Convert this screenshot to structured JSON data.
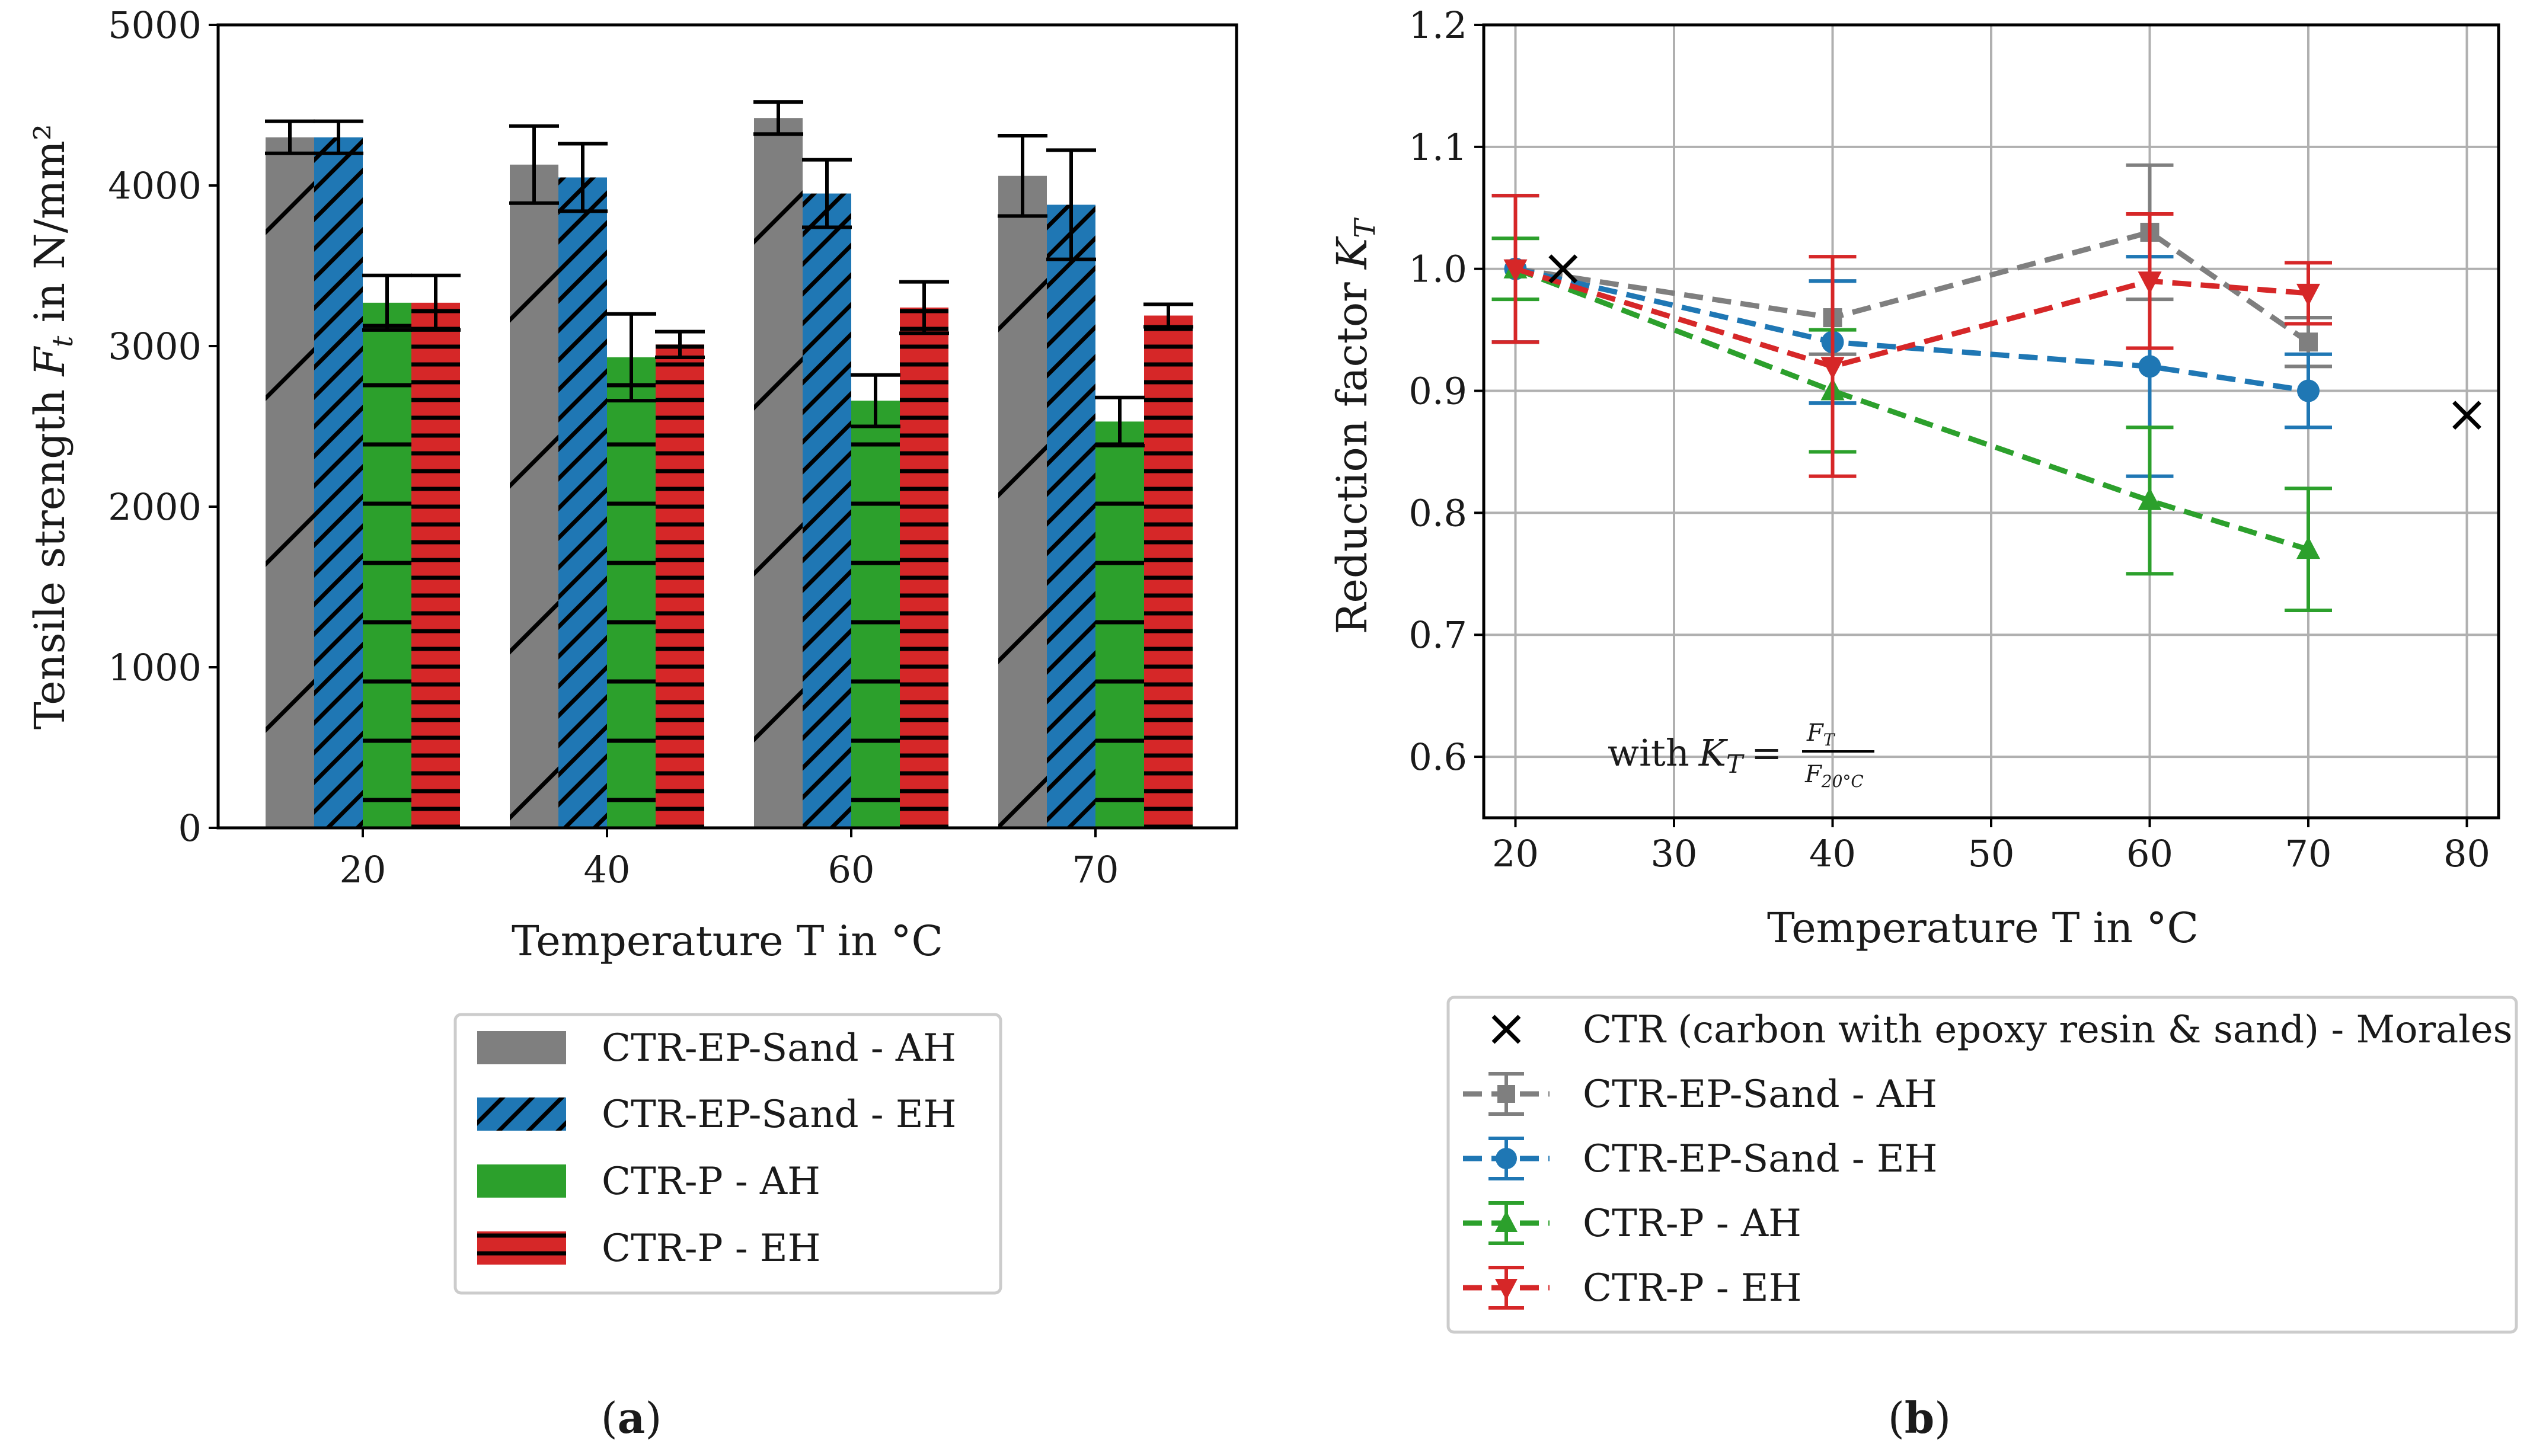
{
  "colors": {
    "gray": "#7f7f7f",
    "blue": "#1f77b4",
    "green": "#2ca02c",
    "red": "#d62728",
    "black": "#000000",
    "grid": "#b0b0b0"
  },
  "chart_data": [
    {
      "type": "bar",
      "panel_label": "(a)",
      "panel_letter": "a",
      "xlabel": "Temperature T in °C",
      "ylabel": "Tensile strength F_t in N/mm²",
      "ylabel_pre": "Tensile strength ",
      "ylabel_sym": "F",
      "ylabel_sub": "t",
      "ylabel_post": " in N/mm²",
      "ylim": [
        0,
        5000
      ],
      "yticks": [
        0,
        1000,
        2000,
        3000,
        4000,
        5000
      ],
      "categories": [
        "20",
        "40",
        "60",
        "70"
      ],
      "series": [
        {
          "name": "CTR-EP-Sand - AH",
          "color": "#7f7f7f",
          "hatch": "slash-sparse",
          "values": [
            4300,
            4130,
            4420,
            4060
          ],
          "err": [
            100,
            240,
            100,
            250
          ]
        },
        {
          "name": "CTR-EP-Sand - EH",
          "color": "#1f77b4",
          "hatch": "slash-dense",
          "values": [
            4300,
            4050,
            3950,
            3880
          ],
          "err": [
            100,
            210,
            210,
            340
          ]
        },
        {
          "name": "CTR-P - AH",
          "color": "#2ca02c",
          "hatch": "horizontal-sparse",
          "values": [
            3270,
            2930,
            2660,
            2530
          ],
          "err": [
            170,
            270,
            160,
            150
          ]
        },
        {
          "name": "CTR-P - EH",
          "color": "#d62728",
          "hatch": "horizontal-dense",
          "values": [
            3270,
            3010,
            3240,
            3190
          ],
          "err": [
            170,
            80,
            160,
            70
          ]
        }
      ],
      "legend": [
        "CTR-EP-Sand - AH",
        "CTR-EP-Sand - EH",
        "CTR-P - AH",
        "CTR-P - EH"
      ]
    },
    {
      "type": "line",
      "panel_label": "(b)",
      "panel_letter": "b",
      "xlabel": "Temperature T in °C",
      "ylabel": "Reduction factor K_T",
      "ylabel_pre": "Reduction factor ",
      "ylabel_sym": "K",
      "ylabel_sub": "T",
      "xlim": [
        18,
        82
      ],
      "ylim": [
        0.55,
        1.2
      ],
      "xticks": [
        20,
        30,
        40,
        50,
        60,
        70,
        80
      ],
      "yticks": [
        0.6,
        0.7,
        0.8,
        0.9,
        1.0,
        1.1,
        1.2
      ],
      "ytick_labels": [
        "0.6",
        "0.7",
        "0.8",
        "0.9",
        "1.0",
        "1.1",
        "1.2"
      ],
      "grid": true,
      "annotation": "with K_T = F_T / F_20°C",
      "annotation_parts": {
        "with": "with",
        "K": "K",
        "Ksub": "T",
        "eq": "=",
        "num": "F",
        "numsub": "T",
        "den": "F",
        "densub": "20°C"
      },
      "reference": {
        "name": "CTR (carbon with epoxy resin & sand) - Morales",
        "marker": "x",
        "color": "#000000",
        "x": [
          23,
          80
        ],
        "y": [
          1.0,
          0.88
        ]
      },
      "series": [
        {
          "name": "CTR-EP-Sand - AH",
          "color": "#7f7f7f",
          "marker": "square",
          "x": [
            20,
            40,
            60,
            70
          ],
          "y": [
            1.0,
            0.96,
            1.03,
            0.94
          ],
          "err": [
            0.06,
            0.03,
            0.055,
            0.02
          ]
        },
        {
          "name": "CTR-EP-Sand - EH",
          "color": "#1f77b4",
          "marker": "circle",
          "x": [
            20,
            40,
            60,
            70
          ],
          "y": [
            1.0,
            0.94,
            0.92,
            0.9
          ],
          "err": [
            0.06,
            0.05,
            0.09,
            0.03
          ]
        },
        {
          "name": "CTR-P - AH",
          "color": "#2ca02c",
          "marker": "triangle-up",
          "x": [
            20,
            40,
            60,
            70
          ],
          "y": [
            1.0,
            0.9,
            0.81,
            0.77
          ],
          "err": [
            0.025,
            0.05,
            0.06,
            0.05
          ]
        },
        {
          "name": "CTR-P - EH",
          "color": "#d62728",
          "marker": "triangle-down",
          "x": [
            20,
            40,
            60,
            70
          ],
          "y": [
            1.0,
            0.92,
            0.99,
            0.98
          ],
          "err": [
            0.06,
            0.09,
            0.055,
            0.025
          ]
        }
      ],
      "legend": [
        "CTR (carbon with epoxy resin & sand) - Morales",
        "CTR-EP-Sand - AH",
        "CTR-EP-Sand - EH",
        "CTR-P - AH",
        "CTR-P - EH"
      ]
    }
  ]
}
